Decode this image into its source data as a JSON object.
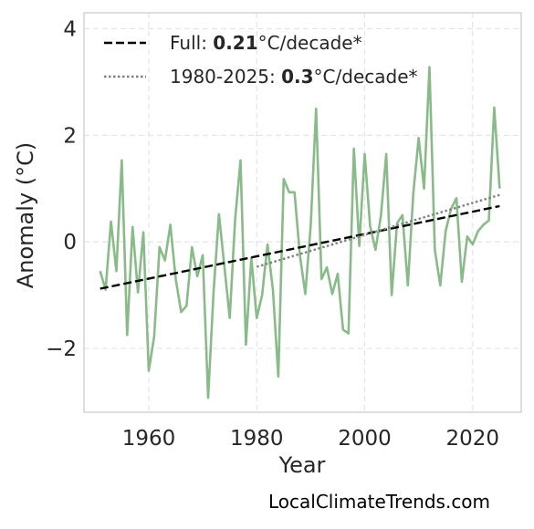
{
  "chart_data": {
    "type": "line",
    "xlabel": "Year",
    "ylabel": "Anomaly (°C)",
    "xlim": [
      1948,
      2029
    ],
    "ylim": [
      -3.2,
      4.3
    ],
    "xticks": [
      1960,
      1980,
      2000,
      2020
    ],
    "yticks": [
      {
        "value": -2,
        "label": "−2"
      },
      {
        "value": 0,
        "label": "0"
      },
      {
        "value": 2,
        "label": "2"
      },
      {
        "value": 4,
        "label": "4"
      }
    ],
    "grid": true,
    "legend_position": "top-left",
    "x": [
      1951,
      1952,
      1953,
      1954,
      1955,
      1956,
      1957,
      1958,
      1959,
      1960,
      1961,
      1962,
      1963,
      1964,
      1965,
      1966,
      1967,
      1968,
      1969,
      1970,
      1971,
      1972,
      1973,
      1974,
      1975,
      1976,
      1977,
      1978,
      1979,
      1980,
      1981,
      1982,
      1983,
      1984,
      1985,
      1986,
      1987,
      1988,
      1989,
      1990,
      1991,
      1992,
      1993,
      1994,
      1995,
      1996,
      1997,
      1998,
      1999,
      2000,
      2001,
      2002,
      2003,
      2004,
      2005,
      2006,
      2007,
      2008,
      2009,
      2010,
      2011,
      2012,
      2013,
      2014,
      2015,
      2016,
      2017,
      2018,
      2019,
      2020,
      2021,
      2022,
      2023,
      2024,
      2025
    ],
    "series": [
      {
        "color": "#88bb88",
        "values": [
          -0.55,
          -0.9,
          0.38,
          -0.55,
          1.53,
          -1.75,
          0.28,
          -0.95,
          0.18,
          -2.42,
          -1.78,
          -0.1,
          -0.35,
          0.32,
          -0.7,
          -1.32,
          -1.2,
          -0.1,
          -0.65,
          -0.25,
          -2.93,
          -0.95,
          0.52,
          -0.45,
          -1.43,
          0.42,
          1.53,
          -1.93,
          -0.3,
          -1.43,
          -1.0,
          -0.05,
          -0.9,
          -2.53,
          1.18,
          0.93,
          0.93,
          -0.25,
          -0.98,
          0.3,
          2.5,
          -0.7,
          -0.48,
          -0.98,
          -0.6,
          -1.65,
          -1.72,
          1.75,
          -0.08,
          1.65,
          0.3,
          -0.15,
          0.48,
          1.65,
          -1.0,
          0.35,
          0.5,
          -0.82,
          0.9,
          1.95,
          1.0,
          3.28,
          -0.15,
          -0.82,
          0.2,
          0.62,
          0.82,
          -0.75,
          0.1,
          -0.05,
          0.2,
          0.32,
          0.4,
          2.52,
          1.0
        ]
      }
    ],
    "trends": [
      {
        "style": "dashed",
        "color": "#000000",
        "x": [
          1951,
          2025
        ],
        "y": [
          -0.88,
          0.67
        ]
      },
      {
        "style": "dotted",
        "color": "#808080",
        "x": [
          1980,
          2025
        ],
        "y": [
          -0.47,
          0.88
        ]
      }
    ],
    "legend": [
      {
        "style": "dashed",
        "color": "#000000",
        "prefix": "Full: ",
        "value": "0.21",
        "suffix": "°C/decade*"
      },
      {
        "style": "dotted",
        "color": "#808080",
        "prefix": "1980-2025: ",
        "value": "0.3",
        "suffix": "°C/decade*"
      }
    ]
  },
  "watermark": "LocalClimateTrends.com"
}
